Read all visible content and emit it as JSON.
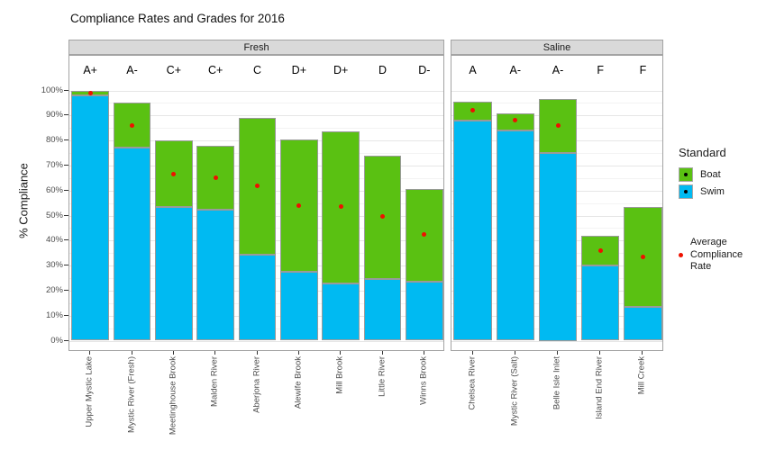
{
  "chart_data": {
    "type": "bar",
    "stacked": true,
    "title": "Compliance Rates and Grades for 2016",
    "ylabel": "% Compliance",
    "ylim": [
      0,
      107
    ],
    "grid": {
      "major_step": 10,
      "minor_step": 5,
      "visible": true
    },
    "legend_position": "right",
    "y_tick_values": [
      0,
      10,
      20,
      30,
      40,
      50,
      60,
      70,
      80,
      90,
      100
    ],
    "y_tick_labels": [
      "0%",
      "10%",
      "20%",
      "30%",
      "40%",
      "50%",
      "60%",
      "70%",
      "80%",
      "90%",
      "100%"
    ],
    "series": [
      {
        "name": "Boat",
        "color": "#5ac112"
      },
      {
        "name": "Swim",
        "color": "#00baf2"
      }
    ],
    "avg_dot_color": "#ee1100",
    "facets": [
      {
        "name": "Fresh",
        "sites": [
          {
            "name": "Upper Mystic Lake",
            "grade": "A+",
            "swim": 98,
            "boat_total": 100,
            "avg": 99
          },
          {
            "name": "Mystic River (Fresh)",
            "grade": "A-",
            "swim": 77,
            "boat_total": 95,
            "avg": 86
          },
          {
            "name": "Meetinghouse Brook",
            "grade": "C+",
            "swim": 53.5,
            "boat_total": 80,
            "avg": 66.5
          },
          {
            "name": "Malden River",
            "grade": "C+",
            "swim": 52.5,
            "boat_total": 78,
            "avg": 65
          },
          {
            "name": "Aberjona River",
            "grade": "C",
            "swim": 34.5,
            "boat_total": 89,
            "avg": 62
          },
          {
            "name": "Alewife Brook",
            "grade": "D+",
            "swim": 27.5,
            "boat_total": 80.5,
            "avg": 54
          },
          {
            "name": "Mill Brook",
            "grade": "D+",
            "swim": 23,
            "boat_total": 83.5,
            "avg": 53.5
          },
          {
            "name": "Little River",
            "grade": "D",
            "swim": 24.5,
            "boat_total": 74,
            "avg": 49.5
          },
          {
            "name": "Winns Brook",
            "grade": "D-",
            "swim": 23.5,
            "boat_total": 60.5,
            "avg": 42.5
          }
        ]
      },
      {
        "name": "Saline",
        "sites": [
          {
            "name": "Chelsea River",
            "grade": "A",
            "swim": 88,
            "boat_total": 95.5,
            "avg": 92
          },
          {
            "name": "Mystic River (Salt)",
            "grade": "A-",
            "swim": 84,
            "boat_total": 91,
            "avg": 88
          },
          {
            "name": "Belle Isle Inlet",
            "grade": "A-",
            "swim": 75,
            "boat_total": 96.5,
            "avg": 86
          },
          {
            "name": "Island End River",
            "grade": "F",
            "swim": 30,
            "boat_total": 42,
            "avg": 36
          },
          {
            "name": "Mill Creek",
            "grade": "F",
            "swim": 13.5,
            "boat_total": 53.5,
            "avg": 33.5
          }
        ]
      }
    ]
  },
  "legend": {
    "title": "Standard",
    "items": [
      {
        "label": "Boat"
      },
      {
        "label": "Swim"
      }
    ],
    "avg_label": "Average\nCompliance\nRate"
  }
}
